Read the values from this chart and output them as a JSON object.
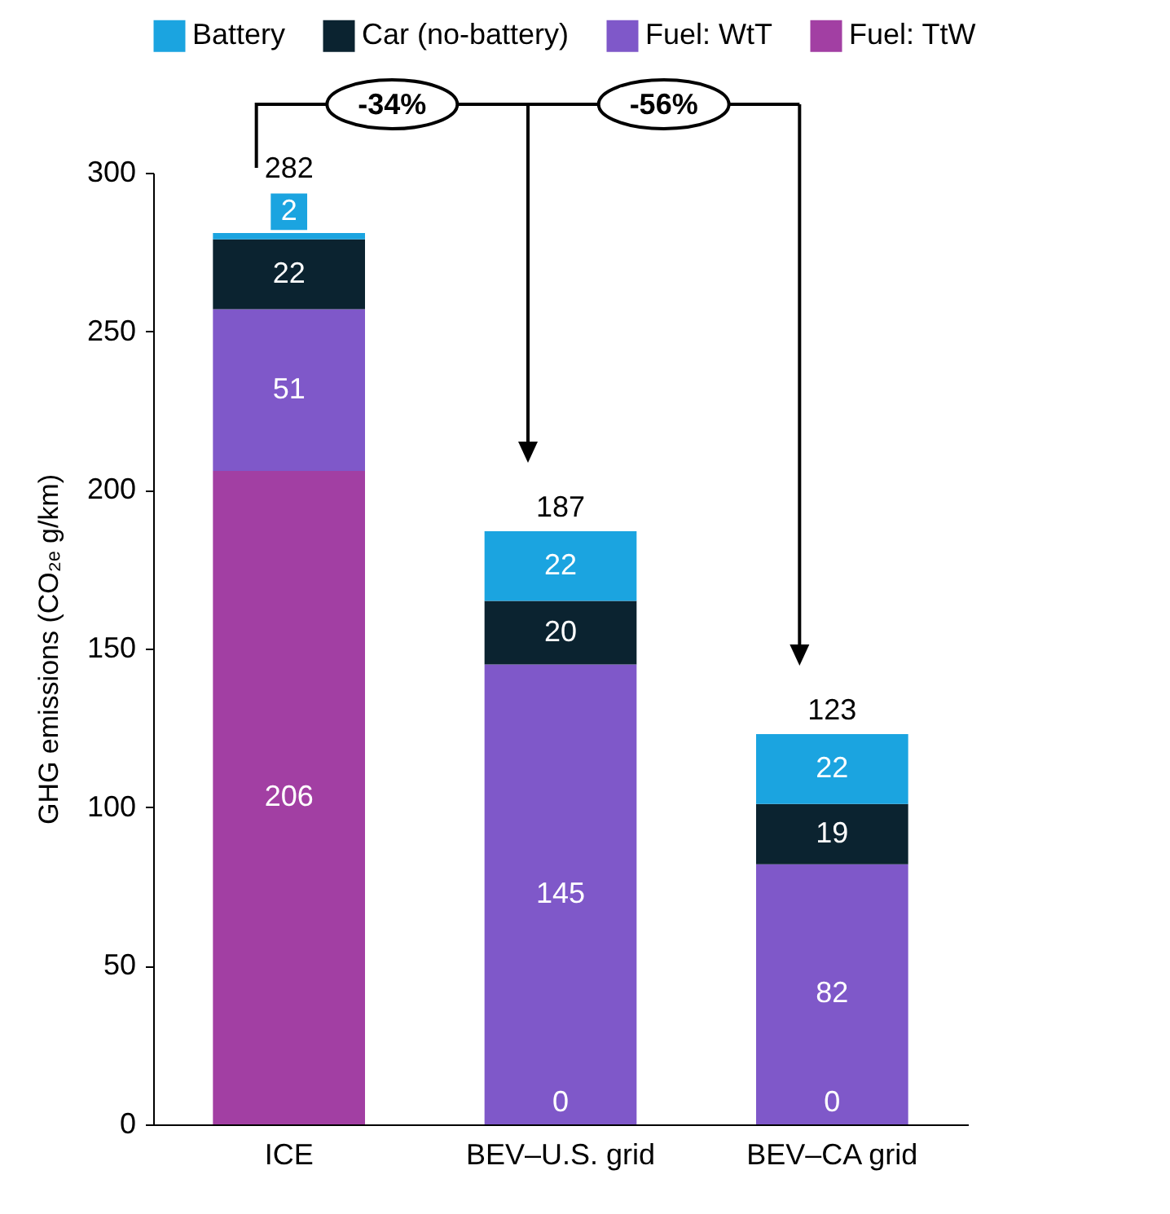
{
  "chart_data": {
    "type": "bar",
    "stacked": true,
    "ylabel": "GHG emissions (CO₂ₑ g/km)",
    "categories": [
      "ICE",
      "BEV–U.S. grid",
      "BEV–CA grid"
    ],
    "series": [
      {
        "name": "Fuel: TtW",
        "color": "#a23fa3",
        "values": [
          206,
          null,
          null
        ]
      },
      {
        "name": "Fuel: WtT",
        "color": "#7f58c9",
        "values": [
          51,
          145,
          82
        ]
      },
      {
        "name": "Car (no-battery)",
        "color": "#0b2330",
        "values": [
          22,
          20,
          19
        ]
      },
      {
        "name": "Battery",
        "color": "#1ba4e0",
        "values": [
          2,
          22,
          22
        ]
      }
    ],
    "ylim": [
      0,
      300
    ],
    "yticks": [
      0,
      50,
      100,
      150,
      200,
      250,
      300
    ],
    "grid": false,
    "legend": "top",
    "data_labels": true,
    "totals": [
      "282",
      "187",
      "123"
    ],
    "annotations": [
      "-34%",
      "-56%",
      {
        "text": "0",
        "x": "BEV–U.S. grid",
        "y": 0
      },
      {
        "text": "0",
        "x": "BEV–CA grid",
        "y": 0
      }
    ]
  }
}
